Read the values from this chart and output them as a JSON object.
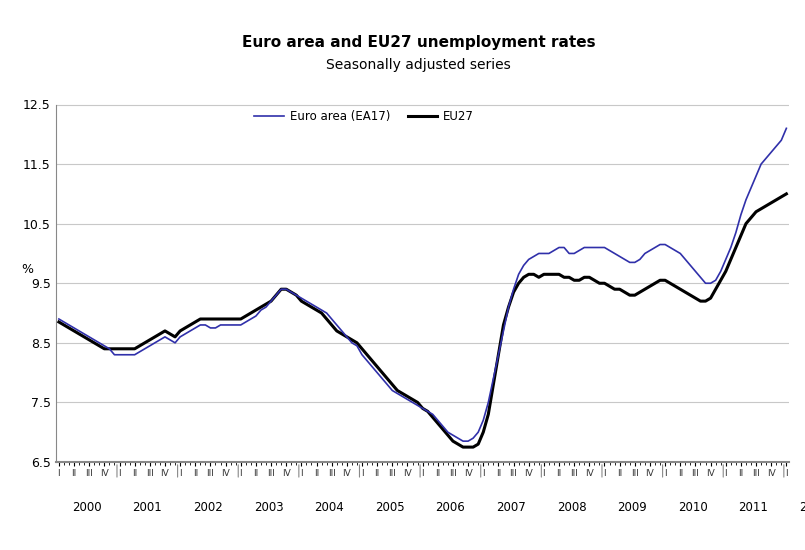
{
  "title": "Euro area and EU27 unemployment rates",
  "subtitle": "Seasonally adjusted series",
  "ylabel": "%",
  "ylim": [
    6.5,
    12.5
  ],
  "yticks": [
    6.5,
    7.5,
    8.5,
    9.5,
    10.5,
    11.5,
    12.5
  ],
  "ea17_color": "#3030aa",
  "eu27_color": "#000000",
  "legend_ea17": "Euro area (EA17)",
  "legend_eu27": "EU27",
  "ea17": [
    8.9,
    8.85,
    8.8,
    8.75,
    8.7,
    8.65,
    8.6,
    8.55,
    8.5,
    8.45,
    8.4,
    8.3,
    8.3,
    8.3,
    8.3,
    8.3,
    8.35,
    8.4,
    8.45,
    8.5,
    8.55,
    8.6,
    8.55,
    8.5,
    8.6,
    8.65,
    8.7,
    8.75,
    8.8,
    8.8,
    8.75,
    8.75,
    8.8,
    8.8,
    8.8,
    8.8,
    8.8,
    8.85,
    8.9,
    8.95,
    9.05,
    9.1,
    9.2,
    9.3,
    9.4,
    9.4,
    9.35,
    9.3,
    9.25,
    9.2,
    9.15,
    9.1,
    9.05,
    9.0,
    8.9,
    8.8,
    8.7,
    8.6,
    8.5,
    8.45,
    8.3,
    8.2,
    8.1,
    8.0,
    7.9,
    7.8,
    7.7,
    7.65,
    7.6,
    7.55,
    7.5,
    7.45,
    7.4,
    7.35,
    7.3,
    7.2,
    7.1,
    7.0,
    6.95,
    6.9,
    6.85,
    6.85,
    6.9,
    7.0,
    7.2,
    7.5,
    7.9,
    8.3,
    8.7,
    9.1,
    9.4,
    9.65,
    9.8,
    9.9,
    9.95,
    10.0,
    10.0,
    10.0,
    10.05,
    10.1,
    10.1,
    10.0,
    10.0,
    10.05,
    10.1,
    10.1,
    10.1,
    10.1,
    10.1,
    10.05,
    10.0,
    9.95,
    9.9,
    9.85,
    9.85,
    9.9,
    10.0,
    10.05,
    10.1,
    10.15,
    10.15,
    10.1,
    10.05,
    10.0,
    9.9,
    9.8,
    9.7,
    9.6,
    9.5,
    9.5,
    9.55,
    9.7,
    9.9,
    10.1,
    10.35,
    10.65,
    10.9,
    11.1,
    11.3,
    11.5,
    11.6,
    11.7,
    11.8,
    11.9,
    12.1
  ],
  "eu27": [
    8.85,
    8.8,
    8.75,
    8.7,
    8.65,
    8.6,
    8.55,
    8.5,
    8.45,
    8.4,
    8.4,
    8.4,
    8.4,
    8.4,
    8.4,
    8.4,
    8.45,
    8.5,
    8.55,
    8.6,
    8.65,
    8.7,
    8.65,
    8.6,
    8.7,
    8.75,
    8.8,
    8.85,
    8.9,
    8.9,
    8.9,
    8.9,
    8.9,
    8.9,
    8.9,
    8.9,
    8.9,
    8.95,
    9.0,
    9.05,
    9.1,
    9.15,
    9.2,
    9.3,
    9.4,
    9.4,
    9.35,
    9.3,
    9.2,
    9.15,
    9.1,
    9.05,
    9.0,
    8.9,
    8.8,
    8.7,
    8.65,
    8.6,
    8.55,
    8.5,
    8.4,
    8.3,
    8.2,
    8.1,
    8.0,
    7.9,
    7.8,
    7.7,
    7.65,
    7.6,
    7.55,
    7.5,
    7.4,
    7.35,
    7.25,
    7.15,
    7.05,
    6.95,
    6.85,
    6.8,
    6.75,
    6.75,
    6.75,
    6.8,
    7.0,
    7.3,
    7.8,
    8.3,
    8.8,
    9.1,
    9.35,
    9.5,
    9.6,
    9.65,
    9.65,
    9.6,
    9.65,
    9.65,
    9.65,
    9.65,
    9.6,
    9.6,
    9.55,
    9.55,
    9.6,
    9.6,
    9.55,
    9.5,
    9.5,
    9.45,
    9.4,
    9.4,
    9.35,
    9.3,
    9.3,
    9.35,
    9.4,
    9.45,
    9.5,
    9.55,
    9.55,
    9.5,
    9.45,
    9.4,
    9.35,
    9.3,
    9.25,
    9.2,
    9.2,
    9.25,
    9.4,
    9.55,
    9.7,
    9.9,
    10.1,
    10.3,
    10.5,
    10.6,
    10.7,
    10.75,
    10.8,
    10.85,
    10.9,
    10.95,
    11.0
  ]
}
